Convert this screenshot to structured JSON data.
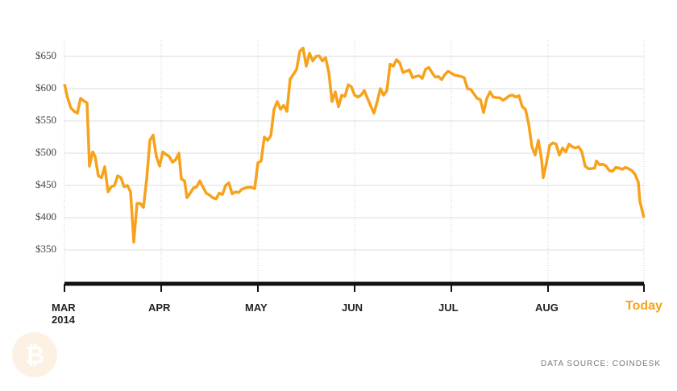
{
  "chart_data": {
    "type": "line",
    "source": "DATA SOURCE: COINDESK",
    "color": "#f7a21b",
    "grid": true,
    "xlim": [
      0,
      179.75
    ],
    "xticks": [
      {
        "value": 0,
        "label": "MAR\n2014"
      },
      {
        "value": 30,
        "label": "APR"
      },
      {
        "value": 60,
        "label": "MAY"
      },
      {
        "value": 90,
        "label": "JUN"
      },
      {
        "value": 120,
        "label": "JUL"
      },
      {
        "value": 150,
        "label": "AUG"
      },
      {
        "value": 179.75,
        "label": "Today"
      }
    ],
    "ylim": [
      297.5,
      675
    ],
    "yticks": [
      {
        "value": 350,
        "label": "$350"
      },
      {
        "value": 400,
        "label": "$400"
      },
      {
        "value": 450,
        "label": "$450"
      },
      {
        "value": 500,
        "label": "$500"
      },
      {
        "value": 550,
        "label": "$550"
      },
      {
        "value": 600,
        "label": "$600"
      },
      {
        "value": 650,
        "label": "$650"
      }
    ],
    "x": [
      0,
      1,
      2,
      3,
      4,
      5,
      6,
      7,
      7.75,
      8.75,
      9.5,
      10.5,
      11.5,
      12.5,
      13.5,
      14.5,
      15.5,
      16.5,
      17.5,
      18.5,
      19.5,
      20.5,
      21.5,
      22.5,
      23.5,
      24.5,
      25.5,
      26.5,
      27.5,
      28.5,
      29.5,
      30.5,
      31.5,
      32.5,
      33.5,
      34.5,
      35.5,
      36.25,
      37.25,
      38,
      39,
      40,
      41,
      42,
      43,
      44,
      45,
      46,
      47,
      48,
      49,
      50,
      51,
      52,
      53,
      54,
      55,
      56,
      57,
      58,
      59,
      60,
      61,
      62,
      63,
      64,
      65,
      66,
      67,
      68,
      69,
      70,
      71,
      72,
      73,
      74,
      75,
      76,
      77,
      78,
      79,
      80,
      81,
      82,
      83,
      84,
      85,
      86,
      87,
      88,
      89,
      90,
      91,
      92,
      93,
      94,
      95,
      96,
      97,
      98,
      99,
      100,
      101,
      102,
      103,
      104,
      105,
      106,
      107,
      108,
      109,
      110,
      111,
      112,
      113,
      114,
      115,
      116,
      117,
      118,
      119,
      120,
      121,
      122,
      123,
      124,
      125,
      126,
      127,
      128,
      129,
      130,
      131,
      132,
      133,
      134,
      135,
      136,
      137,
      138,
      139,
      140,
      141,
      142,
      143,
      144,
      145,
      146,
      147,
      148,
      148.5,
      149.5,
      150.5,
      151.5,
      152.5,
      153.5,
      154.5,
      155.5,
      156.5,
      157.5,
      158.5,
      159.5,
      160.5,
      161.5,
      162.5,
      163.5,
      164.5,
      165,
      166,
      167,
      168,
      169,
      170,
      171,
      172,
      173,
      174,
      175,
      176,
      177,
      178,
      178.5,
      179.75
    ],
    "values": [
      607,
      585,
      570,
      565,
      562,
      585,
      581,
      578,
      480,
      502,
      495,
      465,
      462,
      479,
      440,
      448,
      450,
      465,
      462,
      448,
      450,
      440,
      362,
      422,
      422,
      416,
      460,
      520,
      528,
      495,
      480,
      502,
      498,
      495,
      486,
      490,
      500,
      460,
      457,
      431,
      438,
      446,
      448,
      457,
      447,
      438,
      435,
      431,
      429,
      438,
      436,
      450,
      454,
      437,
      440,
      439,
      444,
      446,
      447,
      447,
      445,
      485,
      488,
      525,
      520,
      527,
      568,
      580,
      568,
      574,
      565,
      615,
      622,
      630,
      658,
      663,
      635,
      655,
      643,
      650,
      651,
      643,
      648,
      625,
      580,
      595,
      572,
      590,
      588,
      606,
      603,
      590,
      587,
      590,
      597,
      585,
      573,
      562,
      580,
      600,
      590,
      597,
      638,
      635,
      645,
      640,
      625,
      627,
      629,
      617,
      619,
      620,
      616,
      630,
      633,
      625,
      618,
      619,
      614,
      622,
      627,
      624,
      621,
      620,
      619,
      617,
      600,
      599,
      592,
      585,
      583,
      563,
      585,
      595,
      587,
      586,
      586,
      582,
      585,
      589,
      590,
      587,
      589,
      572,
      568,
      545,
      510,
      497,
      520,
      490,
      462,
      485,
      512,
      516,
      514,
      497,
      508,
      502,
      514,
      510,
      508,
      510,
      502,
      480,
      476,
      476,
      477,
      488,
      482,
      483,
      480,
      473,
      472,
      478,
      477,
      475,
      478,
      476,
      473,
      467,
      455,
      425,
      400
    ]
  }
}
